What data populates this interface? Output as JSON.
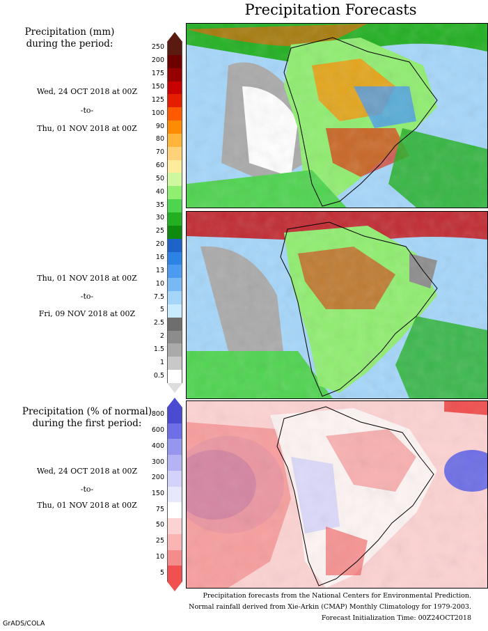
{
  "title": "Precipitation Forecasts",
  "panel1": {
    "header": [
      "Precipitation (mm)",
      "during the period:"
    ],
    "start": "Wed, 24 OCT 2018 at 00Z",
    "to": "-to-",
    "end": "Thu, 01 NOV 2018 at 00Z"
  },
  "panel2": {
    "start": "Thu, 01 NOV 2018 at 00Z",
    "to": "-to-",
    "end": "Fri, 09 NOV 2018 at 00Z"
  },
  "panel3": {
    "header": [
      "Precipitation (% of normal)",
      "during the first period:"
    ],
    "start": "Wed, 24 OCT 2018 at 00Z",
    "to": "-to-",
    "end": "Thu, 01 NOV 2018 at 00Z"
  },
  "mm_scale": {
    "labels": [
      "250",
      "200",
      "175",
      "150",
      "125",
      "100",
      "90",
      "80",
      "70",
      "60",
      "50",
      "40",
      "35",
      "30",
      "25",
      "20",
      "16",
      "13",
      "10",
      "7.5",
      "5",
      "2.5",
      "2",
      "1.5",
      "1",
      "0.5"
    ],
    "colors": [
      "#5a1a10",
      "#6e0000",
      "#960000",
      "#c80000",
      "#e61e00",
      "#ff5a00",
      "#ff8c00",
      "#ffb43c",
      "#ffd27a",
      "#ffeb9c",
      "#cff7a0",
      "#90ee70",
      "#4fd44f",
      "#22b022",
      "#0f8a0f",
      "#1e64c8",
      "#2d82e6",
      "#4b9bf0",
      "#78b9f5",
      "#a5d6fa",
      "#c8ebff",
      "#6e6e6e",
      "#8c8c8c",
      "#aaaaaa",
      "#c8c8c8",
      "#ffffff"
    ]
  },
  "pct_scale": {
    "labels": [
      "800",
      "600",
      "400",
      "300",
      "200",
      "150",
      "75",
      "50",
      "25",
      "10",
      "5"
    ],
    "colors": [
      "#4b4bd2",
      "#6e6ee6",
      "#9696ee",
      "#b4b4f5",
      "#d2d2fa",
      "#e8e8fd",
      "#ffffff",
      "#fcd2d2",
      "#fab4b4",
      "#f58c8c",
      "#f05050"
    ]
  },
  "footer": [
    "Precipitation forecasts from the National Centers for Environmental Prediction.",
    "Normal rainfall derived from Xie-Arkin (CMAP) Monthly Climatology for 1979-2003.",
    "Forecast Initialization Time: 00Z24OCT2018"
  ],
  "credit": "GrADS/COLA"
}
